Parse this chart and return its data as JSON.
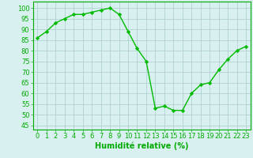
{
  "x": [
    0,
    1,
    2,
    3,
    4,
    5,
    6,
    7,
    8,
    9,
    10,
    11,
    12,
    13,
    14,
    15,
    16,
    17,
    18,
    19,
    20,
    21,
    22,
    23
  ],
  "y": [
    86,
    89,
    93,
    95,
    97,
    97,
    98,
    99,
    100,
    97,
    89,
    81,
    75,
    53,
    54,
    52,
    52,
    60,
    64,
    65,
    71,
    76,
    80,
    82
  ],
  "line_color": "#00bb00",
  "marker": "D",
  "marker_size": 2.2,
  "bg_color": "#d8f0f0",
  "grid_color": "#aacccc",
  "xlabel": "Humidité relative (%)",
  "xlabel_color": "#00aa00",
  "xlabel_fontsize": 7,
  "ylabel_ticks": [
    45,
    50,
    55,
    60,
    65,
    70,
    75,
    80,
    85,
    90,
    95,
    100
  ],
  "ylim": [
    43,
    103
  ],
  "xlim": [
    -0.5,
    23.5
  ],
  "tick_color": "#00aa00",
  "tick_fontsize": 6.0,
  "spine_color": "#00aa00",
  "linewidth": 1.0
}
